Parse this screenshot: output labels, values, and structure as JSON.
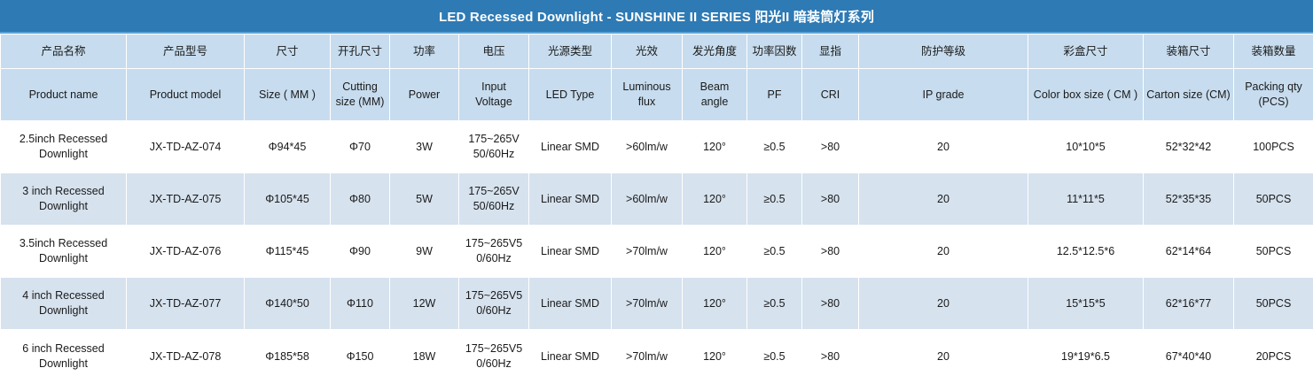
{
  "title": "LED Recessed Downlight - SUNSHINE II SERIES  阳光II 暗装筒灯系列",
  "columns": [
    {
      "cn": "产品名称",
      "en": "Product name"
    },
    {
      "cn": "产品型号",
      "en": "Product model"
    },
    {
      "cn": "尺寸",
      "en": "Size ( MM )"
    },
    {
      "cn": "开孔尺寸",
      "en": "Cutting size (MM)"
    },
    {
      "cn": "功率",
      "en": "Power"
    },
    {
      "cn": "电压",
      "en": "Input Voltage"
    },
    {
      "cn": "光源类型",
      "en": "LED Type"
    },
    {
      "cn": "光效",
      "en": "Luminous flux"
    },
    {
      "cn": "发光角度",
      "en": "Beam angle"
    },
    {
      "cn": "功率因数",
      "en": "PF"
    },
    {
      "cn": "显指",
      "en": "CRI"
    },
    {
      "cn": "防护等级",
      "en": "IP grade"
    },
    {
      "cn": "彩盒尺寸",
      "en": "Color box size ( CM )"
    },
    {
      "cn": "装箱尺寸",
      "en": "Carton size (CM)"
    },
    {
      "cn": "装箱数量",
      "en": "Packing qty (PCS)"
    }
  ],
  "rows": [
    [
      "2.5inch Recessed Downlight",
      "JX-TD-AZ-074",
      "Φ94*45",
      "Φ70",
      "3W",
      "175~265V 50/60Hz",
      "Linear SMD",
      ">60lm/w",
      "120°",
      "≥0.5",
      ">80",
      "20",
      "10*10*5",
      "52*32*42",
      "100PCS"
    ],
    [
      "3 inch Recessed Downlight",
      "JX-TD-AZ-075",
      "Φ105*45",
      "Φ80",
      "5W",
      "175~265V 50/60Hz",
      "Linear SMD",
      ">60lm/w",
      "120°",
      "≥0.5",
      ">80",
      "20",
      "11*11*5",
      "52*35*35",
      "50PCS"
    ],
    [
      "3.5inch Recessed Downlight",
      "JX-TD-AZ-076",
      "Φ115*45",
      "Φ90",
      "9W",
      "175~265V5 0/60Hz",
      "Linear SMD",
      ">70lm/w",
      "120°",
      "≥0.5",
      ">80",
      "20",
      "12.5*12.5*6",
      "62*14*64",
      "50PCS"
    ],
    [
      "4 inch Recessed Downlight",
      "JX-TD-AZ-077",
      "Φ140*50",
      "Φ110",
      "12W",
      "175~265V5 0/60Hz",
      "Linear SMD",
      ">70lm/w",
      "120°",
      "≥0.5",
      ">80",
      "20",
      "15*15*5",
      "62*16*77",
      "50PCS"
    ],
    [
      "6 inch Recessed Downlight",
      "JX-TD-AZ-078",
      "Φ185*58",
      "Φ150",
      "18W",
      "175~265V5 0/60Hz",
      "Linear SMD",
      ">70lm/w",
      "120°",
      "≥0.5",
      ">80",
      "20",
      "19*19*6.5",
      "67*40*40",
      "20PCS"
    ]
  ],
  "colors": {
    "title_bg": "#2e7ab4",
    "header_bg": "#c7dcee",
    "row_alt_bg": "#d6e2ee",
    "row_bg": "#ffffff"
  }
}
